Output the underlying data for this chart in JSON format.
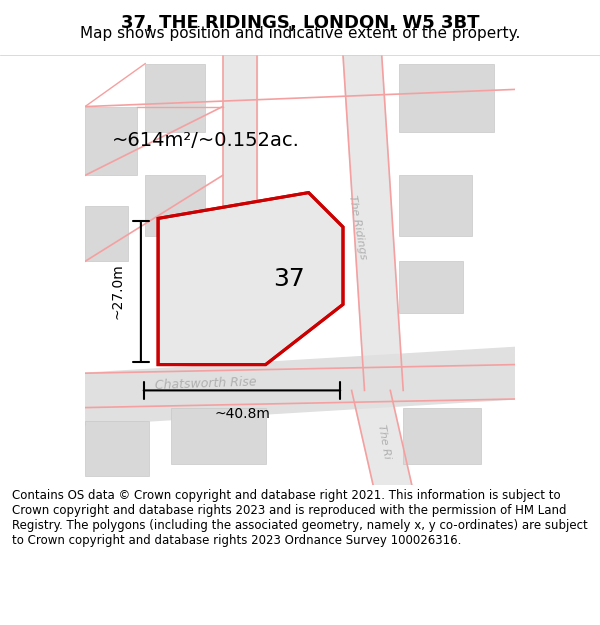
{
  "title": "37, THE RIDINGS, LONDON, W5 3BT",
  "subtitle": "Map shows position and indicative extent of the property.",
  "footer": "Contains OS data © Crown copyright and database right 2021. This information is subject to Crown copyright and database rights 2023 and is reproduced with the permission of HM Land Registry. The polygons (including the associated geometry, namely x, y co-ordinates) are subject to Crown copyright and database rights 2023 Ordnance Survey 100026316.",
  "bg_color": "#f5f5f5",
  "map_bg": "#f0eeee",
  "road_color": "#f5a0a0",
  "road_fill": "#e8e8e8",
  "building_fill": "#d8d8d8",
  "plot_fill": "#e8e8e8",
  "plot_outline": "#cc0000",
  "area_text": "~614m²/~0.152ac.",
  "number_text": "37",
  "width_text": "~40.8m",
  "height_text": "~27.0m",
  "road_label_chatsworth": "Chatsworth Rise",
  "road_label_ridings1": "The Ridings",
  "road_label_ridings2": "The Ri...",
  "title_fontsize": 13,
  "subtitle_fontsize": 11,
  "footer_fontsize": 8.5
}
